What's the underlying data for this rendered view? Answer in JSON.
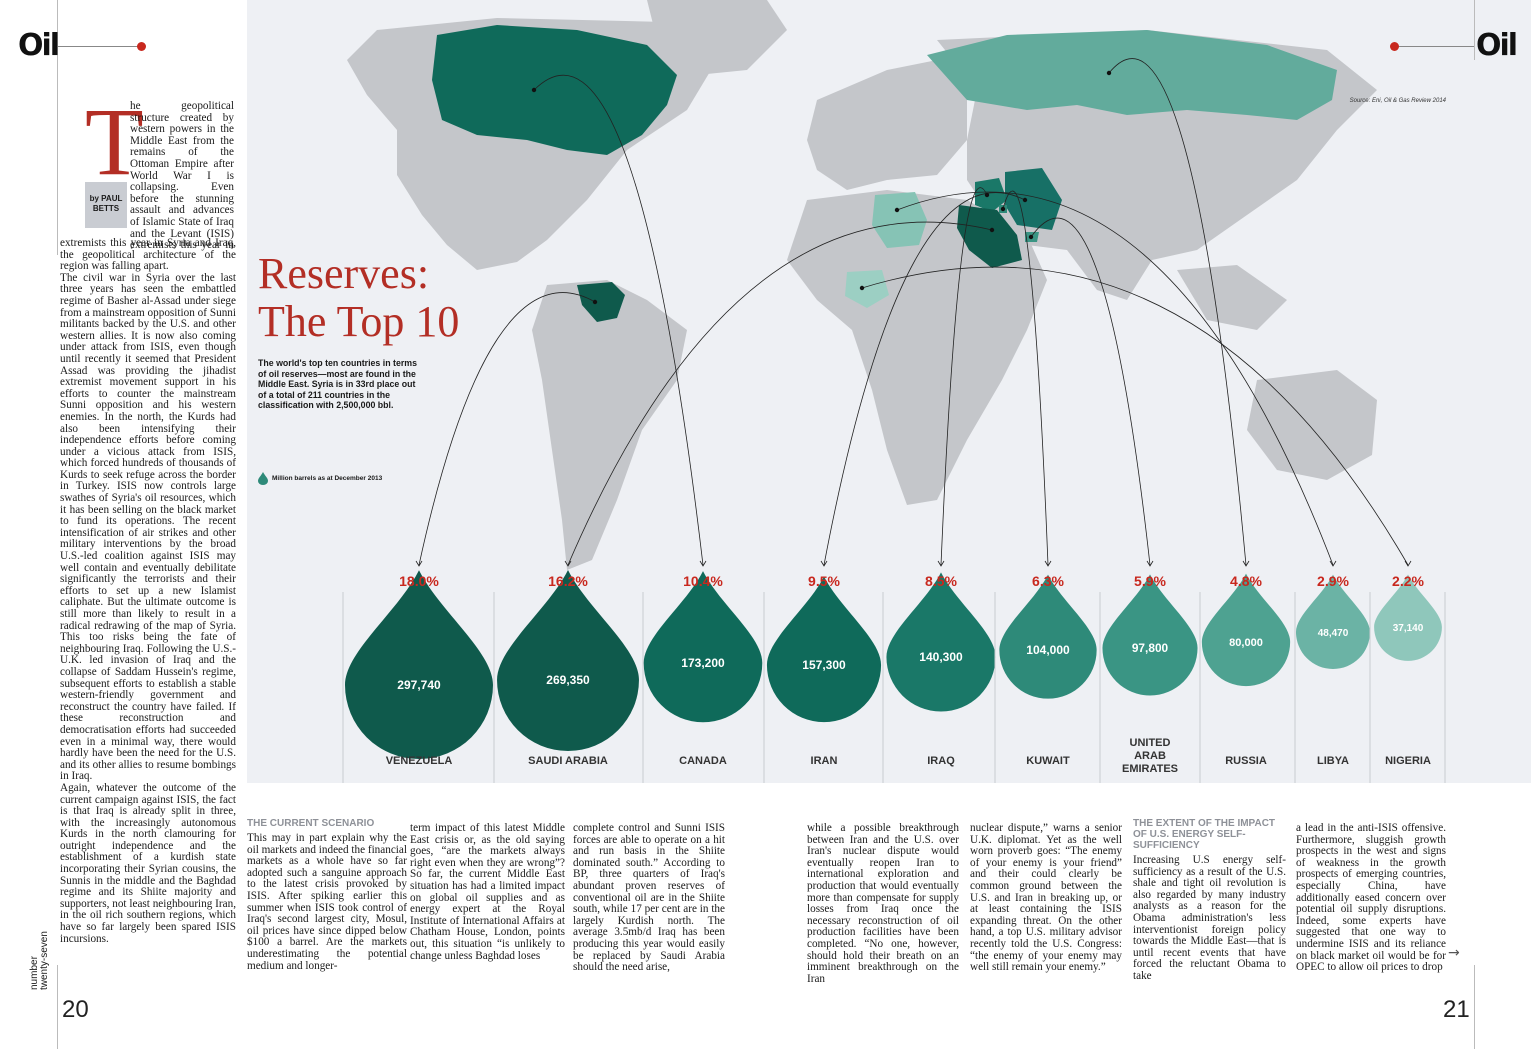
{
  "brand": {
    "logo_text": "Oil",
    "accent": "#c8281e"
  },
  "left_page": {
    "byline": [
      "by PAUL",
      "BETTS"
    ],
    "dropcap": "T",
    "intro_text": "he geopolitical structure created by western powers in the Middle East from the remains of the Ottoman Empire after World War I is collapsing. Even before the stunning assault and advances of Islamic State of Iraq and the Levant (ISIS) extremists this year in Syria and Iraq, the geopolitical architecture of the region was falling apart.",
    "body_text": "The civil war in Syria over the last three years has seen the embattled regime of Basher al-Assad under siege from a mainstream opposition of Sunni militants backed by the U.S. and other western allies. It is now also coming under attack from ISIS, even though until recently it seemed that President Assad was providing the jihadist extremist movement support in his efforts to counter the mainstream Sunni opposition and his western enemies. In the north, the Kurds had also been intensifying their independence efforts before coming under a vicious attack from ISIS, which forced hundreds of thousands of Kurds to seek refuge across the border in Turkey. ISIS now controls large swathes of Syria's oil resources, which it has been selling on the black market to fund its operations. The recent intensification of air strikes and other military interventions by the broad U.S.-led coalition against ISIS may well contain and eventually debilitate significantly the terrorists and their efforts to set up a new Islamist caliphate. But the ultimate outcome is still more than likely to result in a radical redrawing of the map of Syria. This too risks being the fate of neighbouring Iraq. Following the U.S.-U.K. led invasion of Iraq and the collapse of Saddam Hussein's regime, subsequent efforts to establish a stable western-friendly government and reconstruct the country have failed. If these reconstruction and democratisation efforts had succeeded even in a minimal way, there would hardly have been the need for the U.S. and its other allies to resume bombings in Iraq.",
    "body_text_2": "Again, whatever the outcome of the current campaign against ISIS, the fact is that Iraq is already split in three, with the increasingly autonomous Kurds in the north clamouring for outright independence and the establishment of a kurdish state incorporating their Syrian cousins, the Sunnis in the middle and the Baghdad regime and its Shiite majority and supporters, not least neighbouring Iran, in the oil rich southern regions, which have so far largely been spared ISIS incursions.",
    "folio_side": [
      "number",
      "twenty-seven"
    ],
    "page_number": "20"
  },
  "infographic": {
    "title_line1": "Reserves:",
    "title_line2": "The Top 10",
    "subhead": "The world's top ten countries in terms of oil reserves—most are found in the Middle East. Syria is in 33rd place out of a total of 211 countries in the classification with 2,500,000 bbl.",
    "source": "Source: Eni, Oil & Gas Review 2014",
    "legend": "Million barrels as at December 2013",
    "colors": {
      "ocean": "#eef0f4",
      "land": "#c4c6ca",
      "tier1": "#0f5a4c",
      "tier2": "#1a7868",
      "tier3": "#3a9584",
      "tier4": "#6bb3a5",
      "tier5": "#8fc7bb"
    }
  },
  "chart_data": {
    "type": "bar",
    "title": "Reserves: The Top 10",
    "unit": "Million barrels",
    "categories": [
      "VENEZUELA",
      "SAUDI ARABIA",
      "CANADA",
      "IRAN",
      "IRAQ",
      "KUWAIT",
      "UNITED ARAB EMIRATES",
      "RUSSIA",
      "LIBYA",
      "NIGERIA"
    ],
    "values": [
      297740,
      269350,
      173200,
      157300,
      140300,
      104000,
      97800,
      80000,
      48470,
      37140
    ],
    "value_labels": [
      "297,740",
      "269,350",
      "173,200",
      "157,300",
      "140,300",
      "104,000",
      "97,800",
      "80,000",
      "48,470",
      "37,140"
    ],
    "shares": [
      "18.0%",
      "16.2%",
      "10.4%",
      "9.5%",
      "8.5%",
      "6.3%",
      "5.9%",
      "4.8%",
      "2.9%",
      "2.2%"
    ],
    "colors": [
      "#0f5a4c",
      "#0f5a4c",
      "#0f6a5a",
      "#0f6a5a",
      "#1a7868",
      "#2e8a79",
      "#3a9584",
      "#4ea291",
      "#6bb3a5",
      "#8fc7bb"
    ]
  },
  "right_page": {
    "section1_heading": "THE CURRENT SCENARIO",
    "col1": "This may in part explain why the oil markets and indeed the financial markets as a whole have so far adopted such a sanguine approach to the latest crisis provoked by ISIS. After spiking earlier this summer when ISIS took control of Iraq's second largest city, Mosul, oil prices have since dipped below $100 a barrel. Are the markets underestimating the potential medium and longer-",
    "col2": "term impact of this latest Middle East crisis or, as the old saying goes, “are the markets always right even when they are wrong”? So far, the current Middle East situation has had a limited impact on global oil supplies and as energy expert at the Royal Institute of International Affairs at Chatham House, London, points out, this situation “is unlikely to change unless Baghdad loses",
    "col3": "complete control and Sunni ISIS forces are able to operate on a hit and run basis in the Shiite dominated south.” According to BP, three quarters of Iraq's abundant proven reserves of conventional oil are in the Shiite south, while 17 per cent are in the largely Kurdish north. The average 3.5mb/d Iraq has been producing this year would easily be replaced by Saudi Arabia should the need arise,",
    "col4": "while a possible breakthrough between Iran and the U.S. over Iran's nuclear dispute would eventually reopen Iran to international exploration and production that would eventually more than compensate for supply losses from Iraq once the necessary reconstruction of oil production facilities have been completed. “No one, however, should hold their breath on an imminent breakthrough on the Iran",
    "col5": "nuclear dispute,” warns a senior U.K. diplomat. Yet as the well worn proverb goes: “The enemy of your enemy is your friend” and their could clearly be common ground between the U.S. and Iran in breaking up, or at least containing the ISIS expanding threat. On the other hand, a top U.S. military advisor recently told the U.S. Congress: “the enemy of your enemy may well still remain your enemy.”",
    "section2_heading": "THE EXTENT OF THE IMPACT OF U.S. ENERGY SELF-SUFFICIENCY",
    "col6": "Increasing U.S energy self-sufficiency as a result of the U.S. shale and tight oil revolution is also regarded by many industry analysts as a reason for the Obama administration's less interventionist foreign policy towards the Middle East—that is until recent events that have forced the reluctant Obama to take",
    "col7": "a lead in the anti-ISIS offensive. Furthermore, sluggish growth prospects in the west and signs of weakness in the growth prospects of emerging countries, especially China, have additionally eased concern over potential oil supply disruptions. Indeed, some experts have suggested that one way to undermine ISIS and its reliance on black market oil would be for OPEC to allow oil prices to drop",
    "continue_arrow": "→",
    "page_number": "21"
  }
}
